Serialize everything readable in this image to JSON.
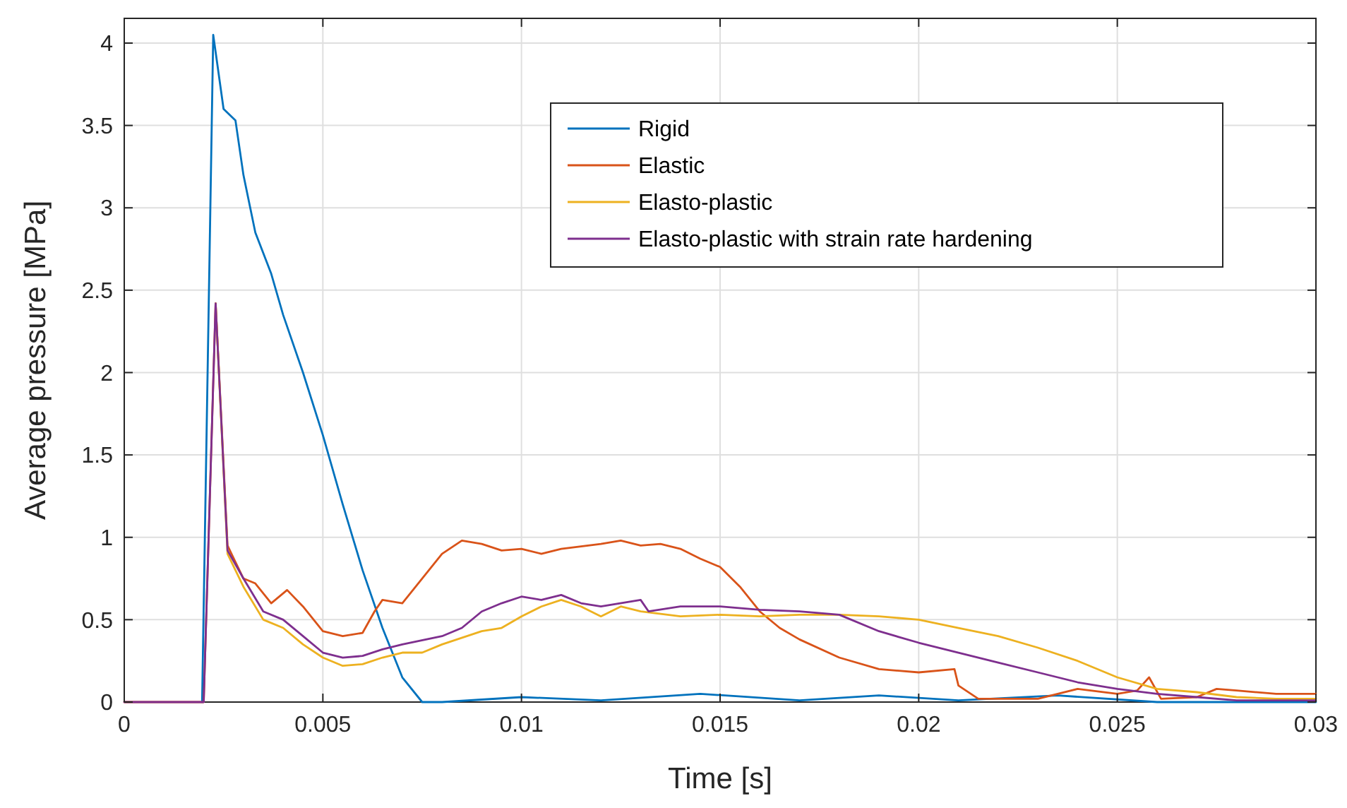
{
  "chart_data": {
    "type": "line",
    "xlabel": "Time [s]",
    "ylabel": "Average pressure [MPa]",
    "xlim": [
      0,
      0.03
    ],
    "ylim": [
      0,
      4.15
    ],
    "xticks": [
      0,
      0.005,
      0.01,
      0.015,
      0.02,
      0.025,
      0.03
    ],
    "yticks": [
      0,
      0.5,
      1,
      1.5,
      2,
      2.5,
      3,
      3.5,
      4
    ],
    "grid": true,
    "legend": "top right",
    "line_style": "solid",
    "marker": "none",
    "series": [
      {
        "name": "Rigid",
        "color": "#0072bd",
        "x": [
          0.00196,
          0.00224,
          0.0025,
          0.0028,
          0.003,
          0.0033,
          0.0037,
          0.004,
          0.0045,
          0.005,
          0.0055,
          0.006,
          0.0065,
          0.007,
          0.0075,
          0.008,
          0.01,
          0.012,
          0.0145,
          0.017,
          0.019,
          0.021,
          0.0235,
          0.026,
          0.03
        ],
        "values": [
          0,
          4.05,
          3.6,
          3.53,
          3.2,
          2.85,
          2.6,
          2.35,
          2,
          1.62,
          1.2,
          0.8,
          0.45,
          0.15,
          0,
          0,
          0.03,
          0.01,
          0.05,
          0.01,
          0.04,
          0.01,
          0.04,
          0,
          0
        ]
      },
      {
        "name": "Elastic",
        "color": "#d95319",
        "x": [
          0,
          0.002,
          0.0023,
          0.0026,
          0.0027,
          0.003,
          0.0033,
          0.0037,
          0.0041,
          0.0045,
          0.005,
          0.0055,
          0.006,
          0.0063,
          0.0065,
          0.007,
          0.0075,
          0.008,
          0.0085,
          0.009,
          0.0095,
          0.01,
          0.0105,
          0.011,
          0.012,
          0.0125,
          0.013,
          0.0135,
          0.014,
          0.0145,
          0.015,
          0.0155,
          0.016,
          0.0165,
          0.017,
          0.018,
          0.019,
          0.02,
          0.0209,
          0.021,
          0.0215,
          0.023,
          0.024,
          0.025,
          0.0255,
          0.0258,
          0.0261,
          0.027,
          0.0275,
          0.028,
          0.029,
          0.03
        ],
        "values": [
          0,
          0,
          2.42,
          0.95,
          0.9,
          0.75,
          0.72,
          0.6,
          0.68,
          0.58,
          0.43,
          0.4,
          0.42,
          0.55,
          0.62,
          0.6,
          0.75,
          0.9,
          0.98,
          0.96,
          0.92,
          0.93,
          0.9,
          0.93,
          0.96,
          0.98,
          0.95,
          0.96,
          0.93,
          0.87,
          0.82,
          0.7,
          0.55,
          0.45,
          0.38,
          0.27,
          0.2,
          0.18,
          0.2,
          0.1,
          0.02,
          0.02,
          0.08,
          0.05,
          0.07,
          0.15,
          0.02,
          0.03,
          0.08,
          0.07,
          0.05,
          0.05
        ]
      },
      {
        "name": "Elasto-plastic",
        "color": "#edb120",
        "x": [
          0.0023,
          0.0026,
          0.003,
          0.0035,
          0.004,
          0.0045,
          0.005,
          0.0055,
          0.006,
          0.0065,
          0.007,
          0.0075,
          0.008,
          0.009,
          0.0095,
          0.01,
          0.0105,
          0.011,
          0.0115,
          0.012,
          0.0125,
          0.013,
          0.014,
          0.015,
          0.016,
          0.017,
          0.018,
          0.019,
          0.02,
          0.021,
          0.022,
          0.023,
          0.024,
          0.025,
          0.026,
          0.027,
          0.028,
          0.029,
          0.03
        ],
        "values": [
          2.42,
          0.9,
          0.7,
          0.5,
          0.45,
          0.35,
          0.27,
          0.22,
          0.23,
          0.27,
          0.3,
          0.3,
          0.35,
          0.43,
          0.45,
          0.52,
          0.58,
          0.62,
          0.58,
          0.52,
          0.58,
          0.55,
          0.52,
          0.53,
          0.52,
          0.53,
          0.53,
          0.52,
          0.5,
          0.45,
          0.4,
          0.33,
          0.25,
          0.15,
          0.08,
          0.06,
          0.03,
          0.02,
          0.02
        ]
      },
      {
        "name": "Elasto-plastic with strain rate hardening",
        "color": "#7e2f8e",
        "x": [
          0,
          0.002,
          0.0023,
          0.0026,
          0.003,
          0.0035,
          0.004,
          0.0045,
          0.005,
          0.0055,
          0.006,
          0.0065,
          0.007,
          0.008,
          0.0085,
          0.009,
          0.0095,
          0.01,
          0.0105,
          0.011,
          0.0115,
          0.012,
          0.013,
          0.0132,
          0.014,
          0.015,
          0.016,
          0.017,
          0.018,
          0.019,
          0.02,
          0.021,
          0.022,
          0.023,
          0.024,
          0.025,
          0.026,
          0.027,
          0.028,
          0.03
        ],
        "values": [
          0,
          0,
          2.42,
          0.92,
          0.75,
          0.55,
          0.5,
          0.4,
          0.3,
          0.27,
          0.28,
          0.32,
          0.35,
          0.4,
          0.45,
          0.55,
          0.6,
          0.64,
          0.62,
          0.65,
          0.6,
          0.58,
          0.62,
          0.55,
          0.58,
          0.58,
          0.56,
          0.55,
          0.53,
          0.43,
          0.36,
          0.3,
          0.24,
          0.18,
          0.12,
          0.08,
          0.05,
          0.03,
          0.01,
          0.01
        ]
      }
    ]
  }
}
